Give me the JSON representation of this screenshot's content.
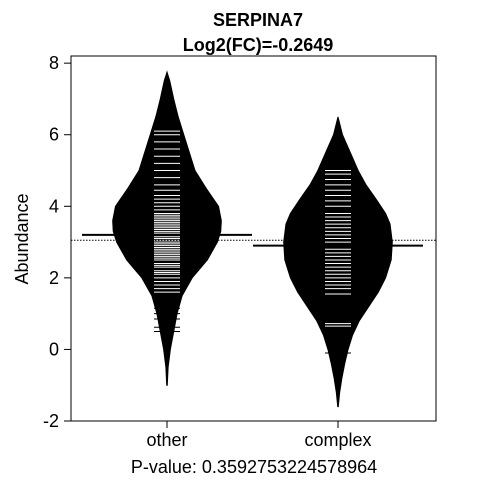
{
  "chart_data": {
    "type": "beanplot",
    "title": "SERPINA7",
    "subtitle": "Log2(FC)=-0.2649",
    "xlabel": "",
    "ylabel": "Abundance",
    "footer": "P-value: 0.3592753224578964",
    "categories": [
      "other",
      "complex"
    ],
    "ylim": [
      -2,
      8.2
    ],
    "yticks": [
      -2,
      0,
      2,
      4,
      6,
      8
    ],
    "overall_mean": 3.05,
    "group_means": [
      3.2,
      2.9
    ],
    "grid": false,
    "densities": [
      {
        "name": "other",
        "y": [
          -1.0,
          -0.5,
          0.0,
          0.5,
          1.0,
          1.5,
          2.0,
          2.5,
          3.0,
          3.3,
          3.6,
          4.0,
          4.5,
          5.0,
          5.5,
          6.0,
          6.5,
          7.0,
          7.5,
          7.75
        ],
        "width": [
          0.005,
          0.02,
          0.06,
          0.12,
          0.18,
          0.27,
          0.45,
          0.72,
          0.9,
          0.96,
          0.97,
          0.92,
          0.7,
          0.5,
          0.4,
          0.3,
          0.2,
          0.12,
          0.05,
          0.0
        ]
      },
      {
        "name": "complex",
        "y": [
          -1.6,
          -1.2,
          -0.8,
          -0.4,
          0.0,
          0.4,
          0.8,
          1.2,
          1.6,
          2.0,
          2.5,
          3.0,
          3.5,
          3.8,
          4.2,
          4.6,
          5.0,
          5.5,
          6.0,
          6.5
        ],
        "width": [
          0.005,
          0.03,
          0.07,
          0.12,
          0.18,
          0.26,
          0.38,
          0.55,
          0.72,
          0.85,
          0.95,
          0.97,
          0.93,
          0.85,
          0.68,
          0.5,
          0.36,
          0.22,
          0.08,
          0.0
        ]
      }
    ],
    "observations": [
      [
        0.5,
        0.62,
        0.85,
        1.0,
        1.15,
        1.3,
        1.45,
        1.6,
        1.7,
        1.8,
        1.9,
        2.0,
        2.1,
        2.15,
        2.2,
        2.3,
        2.35,
        2.4,
        2.5,
        2.55,
        2.6,
        2.65,
        2.7,
        2.75,
        2.8,
        2.85,
        2.9,
        2.95,
        3.0,
        3.05,
        3.1,
        3.15,
        3.2,
        3.25,
        3.3,
        3.35,
        3.4,
        3.45,
        3.5,
        3.55,
        3.6,
        3.65,
        3.7,
        3.75,
        3.8,
        3.9,
        4.0,
        4.1,
        4.2,
        4.3,
        4.45,
        4.6,
        4.8,
        5.0,
        5.2,
        5.4,
        5.6,
        5.8,
        6.0,
        6.1,
        6.2,
        6.25
      ],
      [
        -0.1,
        0.65,
        0.72,
        1.55,
        1.7,
        1.8,
        1.9,
        2.0,
        2.1,
        2.2,
        2.3,
        2.4,
        2.5,
        2.6,
        2.7,
        2.8,
        2.9,
        3.0,
        3.1,
        3.2,
        3.3,
        3.4,
        3.5,
        3.6,
        3.7,
        3.8,
        4.0,
        4.15,
        4.3,
        4.45,
        4.6,
        4.75,
        4.9,
        5.0
      ]
    ]
  }
}
